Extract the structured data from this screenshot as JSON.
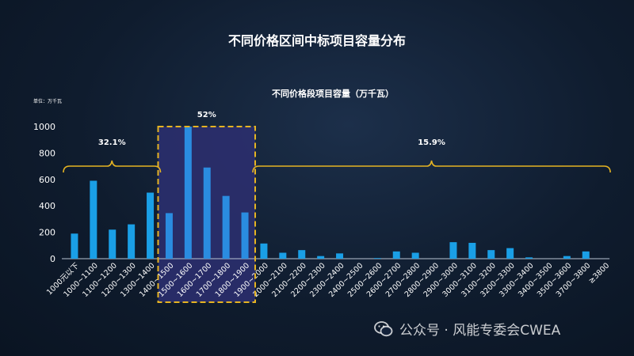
{
  "page_title": "不同价格区间中标项目容量分布",
  "watermark": {
    "text": "公众号 · 风能专委会CWEA"
  },
  "colors": {
    "bar": "#1a9fe6",
    "highlight_bar": "#2a8ce0",
    "bracket": "#e6b422",
    "axis": "#b9c4d3",
    "highlight_fill": "#2b2f6e"
  },
  "chart_data": {
    "type": "bar",
    "title": "不同价格段项目容量（万千瓦）",
    "unit_label": "单位：万千瓦",
    "xlabel": "",
    "ylabel": "",
    "ylim": [
      0,
      1000
    ],
    "yticks": [
      0,
      200,
      400,
      600,
      800,
      1000
    ],
    "grid": false,
    "categories": [
      "1000元以下",
      "1000~1100",
      "1100~1200",
      "1200~1300",
      "1300~1400",
      "1400~1500",
      "1500~1600",
      "1600~1700",
      "1700~1800",
      "1800~1900",
      "1900~2000",
      "2000~2100",
      "2100~2200",
      "2200~2300",
      "2300~2400",
      "2400~2500",
      "2500~2600",
      "2600~2700",
      "2700~2800",
      "2800~2900",
      "2900~3000",
      "3000~3100",
      "3100~3200",
      "3200~3300",
      "3300~3400",
      "3400~3500",
      "3500~3600",
      "3700~3800",
      "≥3800"
    ],
    "values": [
      190,
      590,
      220,
      260,
      500,
      345,
      1000,
      690,
      475,
      350,
      115,
      45,
      65,
      20,
      40,
      0,
      5,
      55,
      45,
      0,
      125,
      120,
      65,
      80,
      10,
      0,
      20,
      55,
      0
    ],
    "groups": [
      {
        "label": "32.1%",
        "from": 0,
        "to": 4
      },
      {
        "label": "52%",
        "from": 5,
        "to": 9,
        "highlighted": true
      },
      {
        "label": "15.9%",
        "from": 10,
        "to": 28
      }
    ]
  }
}
